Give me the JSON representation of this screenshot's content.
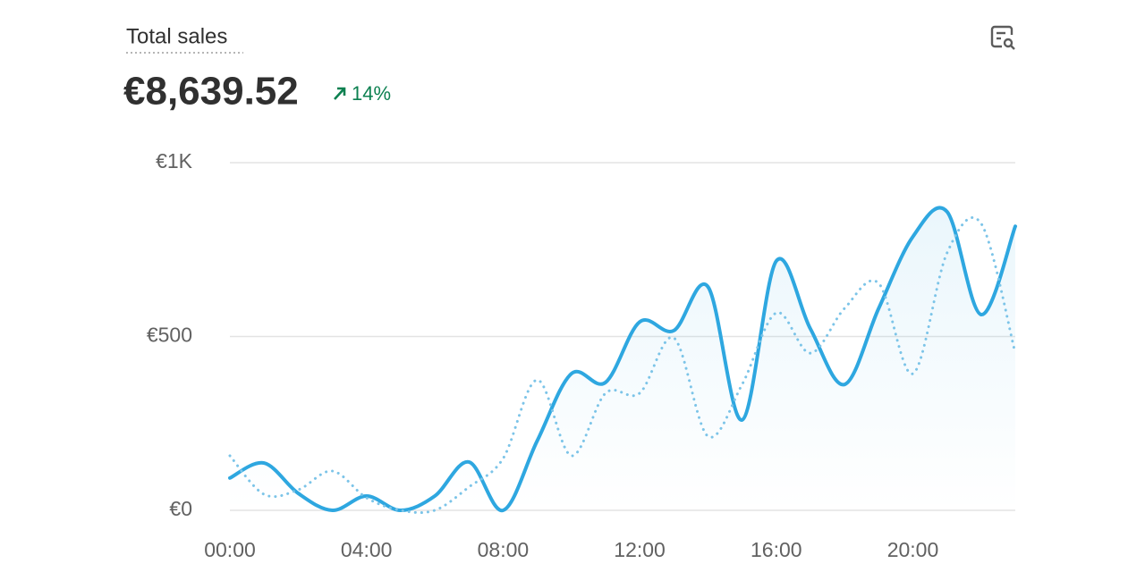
{
  "header": {
    "title": "Total sales",
    "total": "€8,639.52",
    "change": "14%"
  },
  "chart_data": {
    "type": "line",
    "categories": [
      "00:00",
      null,
      null,
      null,
      "04:00",
      null,
      null,
      null,
      "08:00",
      null,
      null,
      null,
      "12:00",
      null,
      null,
      null,
      "16:00",
      null,
      null,
      null,
      "20:00",
      null,
      null,
      null
    ],
    "series": [
      {
        "color": "#2ea7e0",
        "style": "solid",
        "values": [
          93,
          136,
          49,
          0,
          41,
          0,
          41,
          139,
          0,
          200,
          393,
          368,
          542,
          517,
          643,
          260,
          717,
          522,
          362,
          581,
          787,
          859,
          563,
          817
        ]
      },
      {
        "color": "#7cc4e8",
        "style": "dotted",
        "values": [
          157,
          46,
          59,
          113,
          36,
          0,
          0,
          67,
          149,
          375,
          157,
          337,
          337,
          496,
          213,
          362,
          568,
          452,
          581,
          653,
          393,
          740,
          825,
          452
        ]
      }
    ],
    "ylim": [
      0,
      1000
    ],
    "yticks": [
      {
        "value": 0,
        "label": "€0"
      },
      {
        "value": 500,
        "label": "€500"
      },
      {
        "value": 1000,
        "label": "€1K"
      }
    ],
    "grid": true
  }
}
